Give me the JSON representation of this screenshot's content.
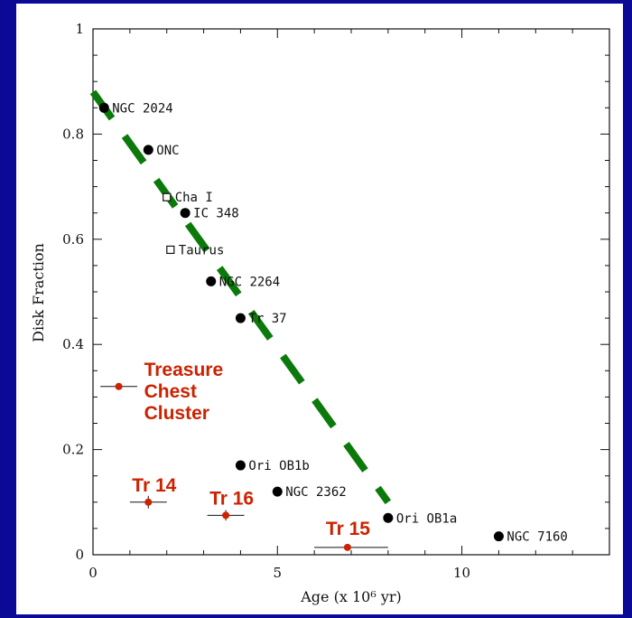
{
  "colors": {
    "background": "#0a0a96",
    "panel": "#ffffff",
    "black_point": "#000000",
    "red_point": "#cc2200",
    "trend_line": "#0b7a0b"
  },
  "chart_data": {
    "type": "scatter",
    "xlabel": "Age (x 10⁶ yr)",
    "ylabel": "Disk Fraction",
    "xlim": [
      0,
      14
    ],
    "ylim": [
      0,
      1
    ],
    "xticks": [
      0,
      5,
      10
    ],
    "xtick_labels": [
      "0",
      "5",
      "10"
    ],
    "yticks": [
      0,
      0.2,
      0.4,
      0.6,
      0.8,
      1
    ],
    "ytick_labels": [
      "0",
      "0.2",
      "0.4",
      "0.6",
      "0.8",
      "1"
    ],
    "grid": false,
    "series": [
      {
        "marker": "filled-circle",
        "points": [
          {
            "label": "NGC 2024",
            "x": 0.3,
            "y": 0.85
          },
          {
            "label": "ONC",
            "x": 1.5,
            "y": 0.77
          },
          {
            "label": "IC 348",
            "x": 2.5,
            "y": 0.65
          },
          {
            "label": "NGC 2264",
            "x": 3.2,
            "y": 0.52
          },
          {
            "label": "Tr 37",
            "x": 4.0,
            "y": 0.45
          },
          {
            "label": "Ori OB1b",
            "x": 4.0,
            "y": 0.17
          },
          {
            "label": "NGC 2362",
            "x": 5.0,
            "y": 0.12
          },
          {
            "label": "Ori OB1a",
            "x": 8.0,
            "y": 0.07
          },
          {
            "label": "NGC 7160",
            "x": 11.0,
            "y": 0.035
          }
        ]
      },
      {
        "marker": "open-square",
        "points": [
          {
            "label": "Cha I",
            "x": 2.0,
            "y": 0.68
          },
          {
            "label": "Taurus",
            "x": 2.1,
            "y": 0.58
          }
        ]
      },
      {
        "marker": "red-circle-errorbar",
        "points": [
          {
            "label_lines": [
              "Treasure",
              "Chest",
              "Cluster"
            ],
            "x": 0.7,
            "y": 0.32,
            "xerr": [
              0.5,
              0.5
            ],
            "yerr": [
              0,
              0
            ]
          },
          {
            "label_lines": [
              "Tr 14"
            ],
            "x": 1.5,
            "y": 0.1,
            "xerr": [
              0.5,
              0.5
            ],
            "yerr": [
              0.012,
              0.012
            ]
          },
          {
            "label_lines": [
              "Tr 16"
            ],
            "x": 3.6,
            "y": 0.075,
            "xerr": [
              0.5,
              0.5
            ],
            "yerr": [
              0.01,
              0.01
            ]
          },
          {
            "label_lines": [
              "Tr 15"
            ],
            "x": 6.9,
            "y": 0.014,
            "xerr": [
              0.9,
              1.1
            ],
            "yerr": [
              0,
              0
            ]
          }
        ]
      }
    ],
    "trend_line": {
      "style": "dashed",
      "x": [
        0,
        8
      ],
      "y": [
        0.88,
        0.1
      ]
    }
  }
}
